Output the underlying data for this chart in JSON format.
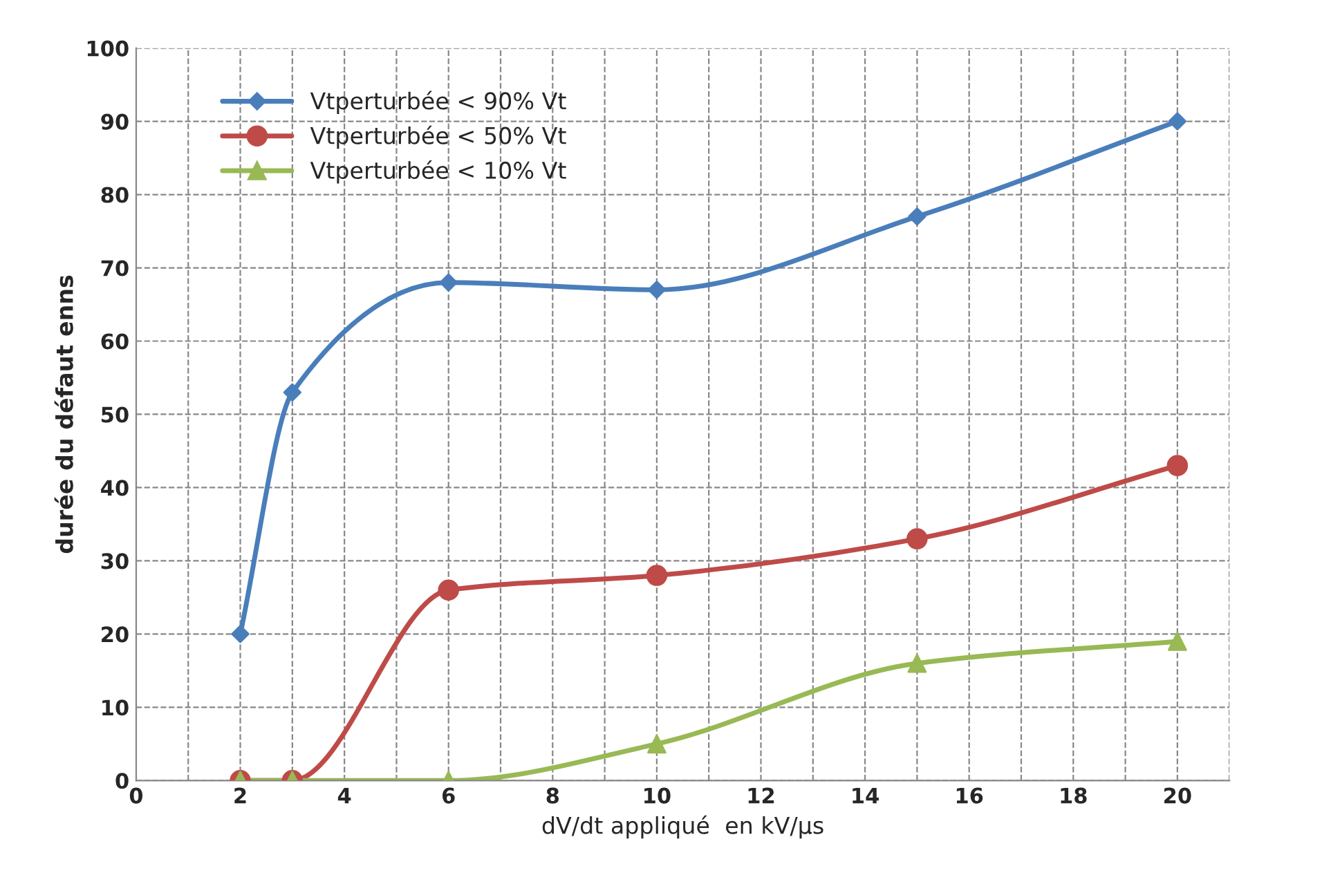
{
  "chart_data": {
    "type": "line",
    "xlabel": "dV/dt appliqué  en kV/µs",
    "ylabel": "durée du défaut enns",
    "x": [
      2,
      3,
      6,
      10,
      15,
      20
    ],
    "series": [
      {
        "name": "Vtperturbée < 90% Vt",
        "color": "#4a7ebb",
        "marker": "diamond",
        "values": [
          20,
          53,
          68,
          67,
          77,
          90
        ]
      },
      {
        "name": "Vtperturbée < 50% Vt",
        "color": "#be4b48",
        "marker": "circle",
        "values": [
          0,
          0,
          26,
          28,
          33,
          43
        ]
      },
      {
        "name": "Vtperturbée < 10% Vt",
        "color": "#98b954",
        "marker": "triangle",
        "values": [
          0,
          0,
          0,
          5,
          16,
          19
        ]
      }
    ],
    "xlim": [
      0,
      21
    ],
    "xticks": [
      0,
      {
        "value": 1,
        "label": null
      },
      2,
      {
        "value": 3,
        "label": null
      },
      4,
      {
        "value": 5,
        "label": null
      },
      6,
      {
        "value": 7,
        "label": null
      },
      8,
      {
        "value": 9,
        "label": null
      },
      10,
      {
        "value": 11,
        "label": null
      },
      12,
      {
        "value": 13,
        "label": null
      },
      14,
      {
        "value": 15,
        "label": null
      },
      16,
      {
        "value": 17,
        "label": null
      },
      18,
      {
        "value": 19,
        "label": null
      },
      20,
      {
        "value": 21,
        "label": null
      }
    ],
    "ylim": [
      0,
      100
    ],
    "yticks": [
      0,
      10,
      20,
      30,
      40,
      50,
      60,
      70,
      80,
      90,
      100
    ],
    "grid": true,
    "legend": "top left"
  }
}
